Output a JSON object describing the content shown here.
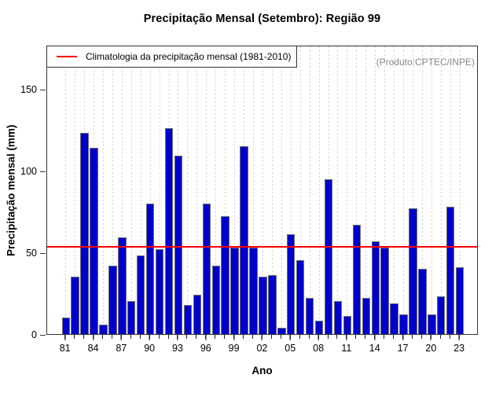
{
  "title": "Precipitação Mensal (Setembro): Região 99",
  "annotation": "(Produto:CPTEC/INPE)",
  "legend": {
    "label": "Climatologia da precipitação mensal (1981-2010)"
  },
  "colors": {
    "bar_fill": "#0000CD",
    "bar_border": "#6F6F6F",
    "climatology_line": "#FF0000",
    "annotation_text": "#878787",
    "grid": "#CFCFCF",
    "axis": "#333333"
  },
  "chart_data": {
    "type": "bar",
    "title": "Precipitação Mensal (Setembro): Região 99",
    "xlabel": "Ano",
    "ylabel": "Precipitação mensal (mm)",
    "x": [
      1981,
      1982,
      1983,
      1984,
      1985,
      1986,
      1987,
      1988,
      1989,
      1990,
      1991,
      1992,
      1993,
      1994,
      1995,
      1996,
      1997,
      1998,
      1999,
      2000,
      2001,
      2002,
      2003,
      2004,
      2005,
      2006,
      2007,
      2008,
      2009,
      2010,
      2011,
      2012,
      2013,
      2014,
      2015,
      2016,
      2017,
      2018,
      2019,
      2020,
      2021,
      2022,
      2023
    ],
    "values": [
      10,
      35,
      123,
      114,
      6,
      42,
      59,
      20,
      48,
      80,
      52,
      126,
      109,
      18,
      24,
      80,
      42,
      72,
      53,
      115,
      53,
      35,
      36,
      4,
      61,
      45,
      22,
      8,
      95,
      20,
      11,
      67,
      22,
      57,
      53,
      19,
      12,
      77,
      40,
      12,
      23,
      78,
      41
    ],
    "climatology_value": 53.5,
    "yticks": [
      0,
      50,
      100,
      150
    ],
    "ylim": [
      0,
      177
    ],
    "x_tick_step": 3,
    "x_tick_labels": [
      "81",
      "84",
      "87",
      "90",
      "93",
      "96",
      "99",
      "02",
      "05",
      "08",
      "11",
      "14",
      "17",
      "20",
      "23"
    ],
    "grid": "vertical-dashed",
    "legend_position": "top-left"
  }
}
